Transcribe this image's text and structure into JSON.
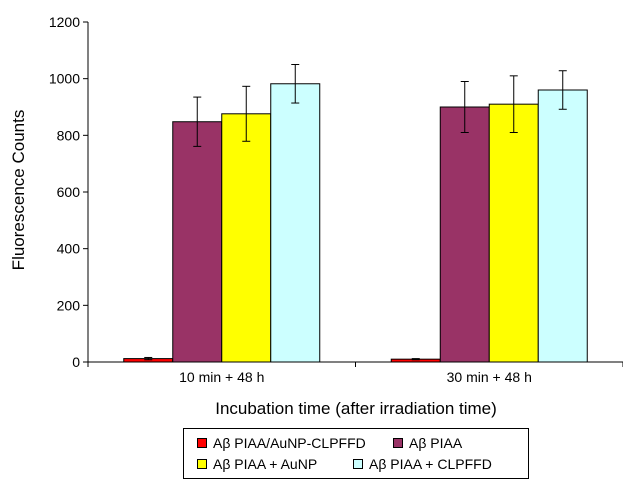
{
  "chart_data": {
    "type": "bar",
    "categories": [
      "10 min + 48 h",
      "30 min + 48 h"
    ],
    "xlabel": "Incubation time (after irradiation time)",
    "ylabel": "Fluorescence Counts",
    "ylim": [
      0,
      1200
    ],
    "yticks": [
      "0",
      "200",
      "400",
      "600",
      "800",
      "1000",
      "1200"
    ],
    "grid": false,
    "legend_position": "bottom",
    "series": [
      {
        "name": "Aβ PIAA/AuNP-CLPFFD",
        "color": "#ff0000",
        "values": [
          12,
          10
        ],
        "errors": [
          4,
          2
        ]
      },
      {
        "name": "Aβ PIAA",
        "color": "#993366",
        "values": [
          848,
          900
        ],
        "errors": [
          87,
          90
        ]
      },
      {
        "name": "Aβ PIAA + AuNP",
        "color": "#ffff00",
        "values": [
          876,
          910
        ],
        "errors": [
          97,
          100
        ]
      },
      {
        "name": "Aβ PIAA + CLPFFD",
        "color": "#ccffff",
        "values": [
          982,
          960
        ],
        "errors": [
          68,
          68
        ]
      }
    ]
  }
}
